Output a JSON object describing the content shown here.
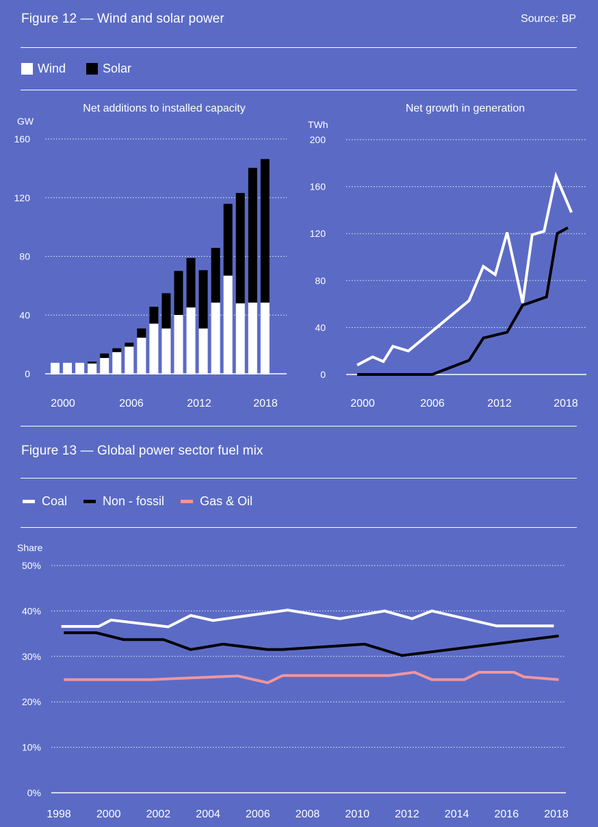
{
  "figure12": {
    "title": "Figure 12 — Wind and solar power",
    "source": "Source: BP",
    "legend": [
      {
        "label": "Wind",
        "color": "#ffffff",
        "icon": "square-swatch"
      },
      {
        "label": "Solar",
        "color": "#000000",
        "icon": "square-swatch"
      }
    ]
  },
  "figure13": {
    "title": "Figure 13 — Global power sector fuel mix",
    "legend": [
      {
        "label": "Coal",
        "color": "#ffffff",
        "icon": "line-swatch"
      },
      {
        "label": "Non - fossil",
        "color": "#000000",
        "icon": "line-swatch"
      },
      {
        "label": "Gas & Oil",
        "color": "#F0969E",
        "icon": "line-swatch"
      }
    ]
  },
  "chart_data": [
    {
      "id": "capacity",
      "type": "bar",
      "stacked": true,
      "title": "Net additions to installed capacity",
      "ylabel": "GW",
      "xlabel": "",
      "ylim": [
        0,
        160
      ],
      "yticks": [
        0,
        40,
        80,
        120,
        160
      ],
      "xtick_labels": [
        "2000",
        "2006",
        "2012",
        "2018"
      ],
      "grid": true,
      "categories": [
        2001,
        2002,
        2003,
        2004,
        2005,
        2006,
        2007,
        2008,
        2009,
        2010,
        2011,
        2012,
        2013,
        2014,
        2015,
        2016,
        2017,
        2018
      ],
      "series": [
        {
          "name": "Wind",
          "color": "#ffffff",
          "values": [
            7.5,
            7.5,
            7.5,
            7,
            10.8,
            14.8,
            18.5,
            24.6,
            34.2,
            30.9,
            40.1,
            45.2,
            30.9,
            48.5,
            66.9,
            48,
            48.5,
            48.5
          ]
        },
        {
          "name": "Solar",
          "color": "#000000",
          "values": [
            0,
            0,
            0,
            1.3,
            3,
            2.6,
            2.7,
            6.3,
            11.5,
            24,
            30,
            33.7,
            39.7,
            37.3,
            48.9,
            75.2,
            91.8,
            97.8
          ]
        }
      ]
    },
    {
      "id": "generation",
      "type": "line",
      "title": "Net growth in generation",
      "ylabel": "TWh",
      "xlabel": "",
      "ylim": [
        0,
        200
      ],
      "yticks": [
        0,
        40,
        80,
        120,
        160,
        200
      ],
      "xlim": [
        1999,
        2019
      ],
      "xtick_labels": [
        "2000",
        "2006",
        "2012",
        "2018"
      ],
      "grid": true,
      "series": [
        {
          "name": "Wind",
          "color": "#ffffff",
          "x": [
            2000,
            2001.3,
            2002.2,
            2003,
            2004.3,
            2009.4,
            2010.6,
            2011.6,
            2012.6,
            2013.9,
            2014.7,
            2015.7,
            2016.7,
            2018
          ],
          "y": [
            8,
            15,
            11,
            24,
            20,
            63,
            92,
            85,
            121,
            61,
            119,
            122,
            169,
            138
          ]
        },
        {
          "name": "Solar",
          "color": "#000000",
          "x": [
            2000,
            2006.3,
            2009.4,
            2010.6,
            2012.6,
            2013.9,
            2015.9,
            2016.8,
            2017.7
          ],
          "y": [
            0,
            0,
            12,
            31,
            36,
            59,
            66,
            120,
            125
          ]
        }
      ]
    },
    {
      "id": "fuelmix",
      "type": "line",
      "title": "",
      "ylabel": "Share",
      "xlabel": "",
      "ylim": [
        0,
        50
      ],
      "yticks": [
        0,
        10,
        20,
        30,
        40,
        50
      ],
      "ytick_suffix": "%",
      "xlim": [
        1998,
        2018
      ],
      "xtick_labels": [
        "1998",
        "2000",
        "2002",
        "2004",
        "2006",
        "2008",
        "2010",
        "2012",
        "2014",
        "2016",
        "2018"
      ],
      "grid": true,
      "series": [
        {
          "name": "Coal",
          "color": "#ffffff",
          "x": [
            1998.1,
            1999.6,
            2000.1,
            2002.4,
            2003.3,
            2004.2,
            2007.2,
            2009.3,
            2011.1,
            2012.2,
            2013,
            2015.6,
            2017.9
          ],
          "y": [
            36.6,
            36.6,
            38.0,
            36.5,
            39.0,
            37.9,
            40.2,
            38.3,
            40.0,
            38.3,
            40.0,
            36.7,
            36.7
          ]
        },
        {
          "name": "Non - fossil",
          "color": "#000000",
          "x": [
            1998.2,
            1999.5,
            2000.6,
            2002.2,
            2003.3,
            2004.6,
            2006.4,
            2007,
            2010.3,
            2011.8,
            2018.1
          ],
          "y": [
            35.2,
            35.2,
            33.7,
            33.7,
            31.5,
            32.7,
            31.5,
            31.5,
            32.7,
            30.2,
            34.5
          ]
        },
        {
          "name": "Gas & Oil",
          "color": "#F0969E",
          "x": [
            1998.2,
            2001.7,
            2005.2,
            2006.4,
            2007,
            2011.3,
            2012.3,
            2013,
            2014.3,
            2014.9,
            2016.3,
            2016.7,
            2018.1
          ],
          "y": [
            24.9,
            24.9,
            25.7,
            24.2,
            25.8,
            25.8,
            26.5,
            24.9,
            24.9,
            26.5,
            26.5,
            25.5,
            24.9
          ]
        }
      ]
    }
  ]
}
